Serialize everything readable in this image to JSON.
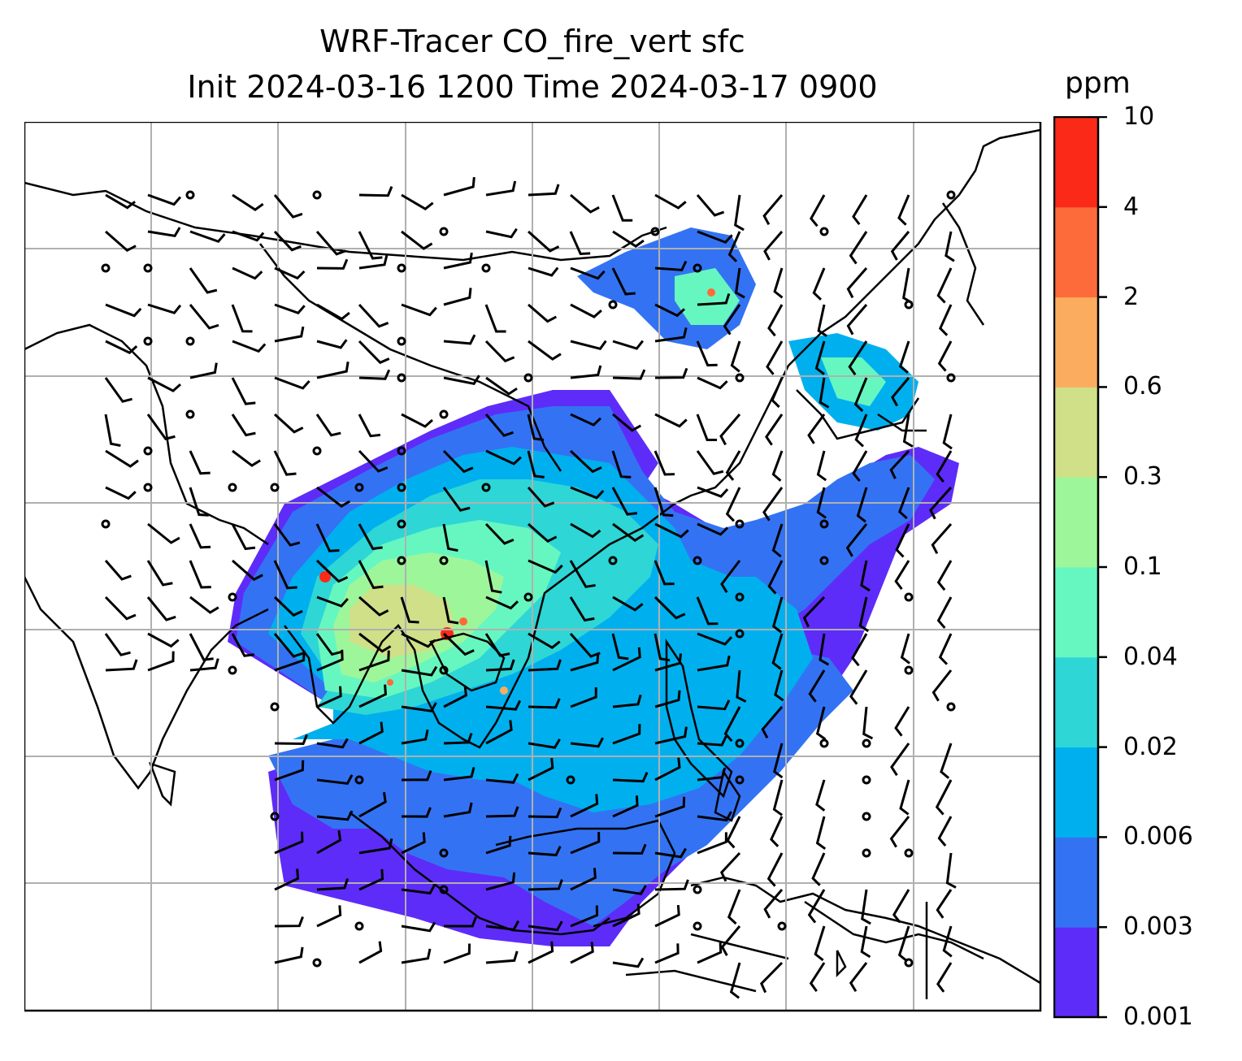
{
  "title": {
    "line1": "WRF-Tracer CO_fire_vert sfc",
    "line2": "Init 2024-03-16 1200 Time 2024-03-17 0900"
  },
  "colorbar": {
    "unit": "ppm",
    "ticks": [
      "10",
      "4",
      "2",
      "0.6",
      "0.3",
      "0.1",
      "0.04",
      "0.02",
      "0.006",
      "0.003",
      "0.001"
    ],
    "colors_bottom_to_top": [
      "#5e2cf8",
      "#3373f3",
      "#00b0ee",
      "#2ed6d6",
      "#66f7c0",
      "#9ef69a",
      "#cfe088",
      "#fcac5e",
      "#fd6b3a",
      "#fb2a18"
    ]
  },
  "map": {
    "variable": "CO_fire_vert",
    "level": "sfc",
    "overlay": "wind barbs (black), calm-wind circles",
    "gridlines": "gray",
    "coastlines": "black"
  }
}
